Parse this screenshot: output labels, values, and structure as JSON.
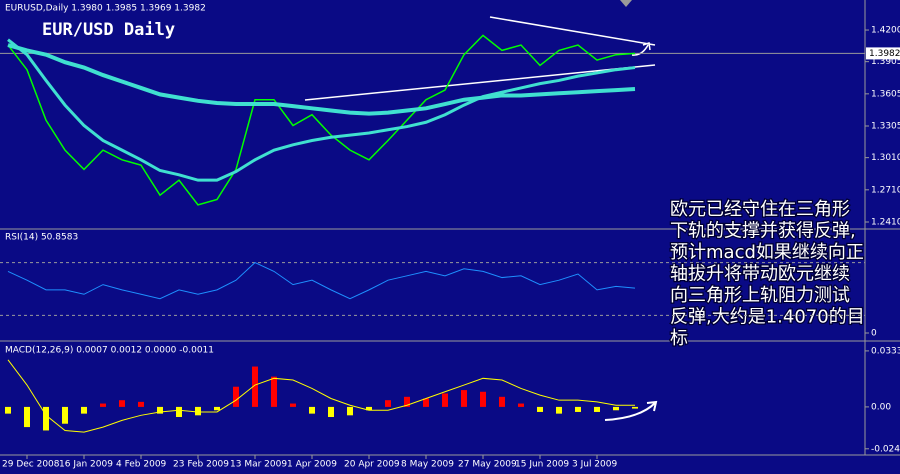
{
  "chart_data": [
    {
      "type": "line",
      "title": "EURUSD,Daily  1.3980 1.3985 1.3969 1.3982",
      "heading": "EUR/USD Daily",
      "categories": [
        null,
        "29 Dec 2008",
        null,
        null,
        "16 Jan 2009",
        null,
        null,
        "4 Feb 2009",
        null,
        null,
        "23 Feb 2009",
        null,
        null,
        "13 Mar 2009",
        null,
        null,
        "1 Apr 2009",
        null,
        null,
        "20 Apr 2009",
        null,
        null,
        "8 May 2009",
        null,
        null,
        "27 May 2009",
        null,
        null,
        "15 Jun 2009",
        null,
        null,
        "3 Jul 2009",
        null,
        null
      ],
      "series": [
        {
          "color": "#00ff00",
          "width": 1.5,
          "values": [
            1.406,
            1.383,
            1.336,
            1.308,
            1.29,
            1.308,
            1.299,
            1.294,
            1.266,
            1.28,
            1.257,
            1.262,
            1.29,
            1.355,
            1.355,
            1.331,
            1.341,
            1.322,
            1.308,
            1.299,
            1.317,
            1.336,
            1.355,
            1.364,
            1.397,
            1.415,
            1.401,
            1.406,
            1.387,
            1.401,
            1.406,
            1.392,
            1.397,
            1.3982
          ]
        },
        {
          "color": "#40e0d0",
          "width": 4,
          "values": [
            1.406,
            1.401,
            1.397,
            1.39,
            1.385,
            1.378,
            1.372,
            1.366,
            1.36,
            1.357,
            1.354,
            1.352,
            1.351,
            1.351,
            1.351,
            1.349,
            1.347,
            1.345,
            1.343,
            1.342,
            1.343,
            1.345,
            1.347,
            1.351,
            1.355,
            1.357,
            1.359,
            1.359,
            1.36,
            1.361,
            1.362,
            1.363,
            1.364,
            1.365
          ]
        },
        {
          "color": "#40e0d0",
          "width": 3,
          "values": [
            1.411,
            1.397,
            1.373,
            1.35,
            1.331,
            1.317,
            1.308,
            1.299,
            1.289,
            1.285,
            1.28,
            1.28,
            1.288,
            1.299,
            1.308,
            1.313,
            1.317,
            1.32,
            1.322,
            1.324,
            1.327,
            1.33,
            1.334,
            1.341,
            1.35,
            1.358,
            1.362,
            1.366,
            1.37,
            1.373,
            1.377,
            1.38,
            1.383,
            1.385
          ]
        }
      ],
      "ylim": [
        1.2354,
        1.448
      ],
      "yticks": [
        {
          "value": 1.42,
          "label": "1.4200"
        },
        {
          "value": 1.3905,
          "label": "1.3905"
        },
        {
          "value": 1.3605,
          "label": "1.3605"
        },
        {
          "value": 1.3305,
          "label": "1.3305"
        },
        {
          "value": 1.301,
          "label": "1.3010"
        },
        {
          "value": 1.271,
          "label": "1.2710"
        },
        {
          "value": 1.241,
          "label": "1.2410"
        }
      ],
      "last_price": {
        "value": 1.3982,
        "label": "1.3982"
      },
      "annotation": [
        "欧元已经守住在三角形",
        "下轨的支撑并获得反弹,",
        "预计macd如果继续向正",
        "轴拔升将带动欧元继续",
        "向三角形上轨阻力测试",
        "反弹,大约是1.4070的目",
        "标"
      ]
    },
    {
      "type": "line",
      "title": "RSI(14) 50.8583",
      "series": [
        {
          "color": "#1e90ff",
          "width": 1,
          "values": [
            70,
            60,
            49,
            49,
            44,
            55,
            49,
            44,
            39,
            49,
            44,
            49,
            60,
            80,
            70,
            55,
            60,
            49,
            39,
            49,
            60,
            65,
            70,
            65,
            73,
            70,
            63,
            65,
            55,
            60,
            67,
            49,
            53,
            51
          ]
        }
      ],
      "ylim": [
        0,
        100
      ],
      "yticks": [
        0
      ],
      "levels": [
        80,
        20
      ]
    },
    {
      "type": "bar",
      "title": "MACD(12,26,9) 0.0007 0.0012 0.0000 -0.0011",
      "series": [
        {
          "color": "#ff0000",
          "negative_color": "#ffff00",
          "values": [
            -0.004,
            -0.012,
            -0.014,
            -0.01,
            -0.004,
            0.002,
            0.004,
            0.003,
            -0.004,
            -0.006,
            -0.005,
            -0.002,
            0.012,
            0.024,
            0.018,
            0.002,
            -0.004,
            -0.006,
            -0.005,
            -0.002,
            0.004,
            0.006,
            0.005,
            0.008,
            0.01,
            0.009,
            0.006,
            0.002,
            -0.003,
            -0.004,
            -0.003,
            -0.003,
            -0.002,
            -0.001
          ]
        },
        {
          "type": "line",
          "color": "#ffff00",
          "width": 1,
          "values": [
            0.028,
            0.013,
            -0.005,
            -0.014,
            -0.015,
            -0.012,
            -0.008,
            -0.005,
            -0.003,
            -0.002,
            -0.003,
            -0.003,
            0.004,
            0.013,
            0.017,
            0.016,
            0.011,
            0.005,
            0.001,
            -0.002,
            -0.002,
            0.001,
            0.005,
            0.009,
            0.013,
            0.017,
            0.016,
            0.011,
            0.007,
            0.004,
            0.004,
            0.003,
            0.001,
            0.001
          ]
        }
      ],
      "ylim": [
        -0.028,
        0.038
      ],
      "yticks": [
        {
          "value": 0.0333,
          "label": "0.0333"
        },
        {
          "value": 0,
          "label": "0.00"
        },
        {
          "value": -0.0249,
          "label": "-0.0249"
        }
      ]
    }
  ]
}
